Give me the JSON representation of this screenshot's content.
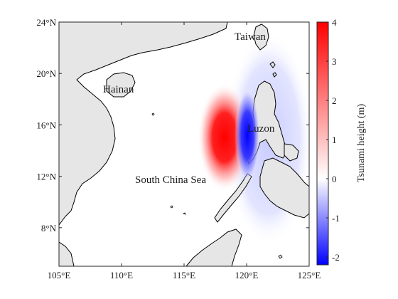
{
  "map": {
    "lon_ticks": [
      "105°E",
      "110°E",
      "115°E",
      "120°E",
      "125°E"
    ],
    "lat_ticks": [
      "24°N",
      "20°N",
      "16°N",
      "12°N",
      "8°N"
    ],
    "lon_range": [
      105,
      125
    ],
    "lat_range": [
      5,
      24
    ],
    "places": {
      "taiwan": "Taiwan",
      "hainan": "Hainan",
      "luzon": "Luzon",
      "south_china_sea": "South China Sea"
    },
    "colors": {
      "land": "#e6e6e6",
      "coast": "#000000",
      "positive": "#ff0000",
      "negative": "#0000ff"
    }
  },
  "colorbar": {
    "label": "Tsunami height (m)",
    "ticks": [
      "4",
      "3",
      "2",
      "1",
      "0",
      "-1",
      "-2"
    ],
    "range": [
      -2.2,
      4
    ]
  }
}
